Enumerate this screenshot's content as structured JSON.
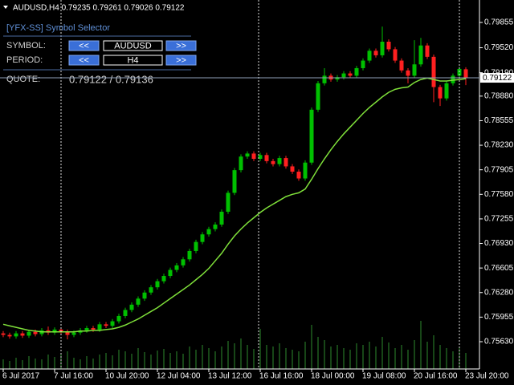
{
  "chart_data": {
    "type": "candlestick",
    "header": "AUDUSD,H4  0.79235 0.79261 0.79026 0.79122",
    "ylim": [
      0.75269,
      0.80152
    ],
    "yticks": [
      {
        "value": 0.79855,
        "label": "0.79855"
      },
      {
        "value": 0.7952,
        "label": "0.79520"
      },
      {
        "value": 0.7919,
        "label": "0.79190"
      },
      {
        "value": 0.7888,
        "label": "0.78880"
      },
      {
        "value": 0.78555,
        "label": "0.78555"
      },
      {
        "value": 0.7823,
        "label": "0.78230"
      },
      {
        "value": 0.77905,
        "label": "0.77905"
      },
      {
        "value": 0.7758,
        "label": "0.77580"
      },
      {
        "value": 0.77255,
        "label": "0.77255"
      },
      {
        "value": 0.7693,
        "label": "0.76930"
      },
      {
        "value": 0.76605,
        "label": "0.76605"
      },
      {
        "value": 0.7628,
        "label": "0.76280"
      },
      {
        "value": 0.75955,
        "label": "0.75955"
      },
      {
        "value": 0.7563,
        "label": "0.75630"
      }
    ],
    "categories": [
      "6 Jul 2017",
      null,
      null,
      null,
      null,
      null,
      null,
      null,
      "7 Jul 16:00",
      null,
      null,
      null,
      null,
      null,
      null,
      null,
      "10 Jul 20:00",
      null,
      null,
      null,
      null,
      null,
      null,
      null,
      "12 Jul 04:00",
      null,
      null,
      null,
      null,
      null,
      null,
      null,
      "13 Jul 12:00",
      null,
      null,
      null,
      null,
      null,
      null,
      null,
      "16 Jul 16:00",
      null,
      null,
      null,
      null,
      null,
      null,
      null,
      "18 Jul 00:00",
      null,
      null,
      null,
      null,
      null,
      null,
      null,
      "19 Jul 08:00",
      null,
      null,
      null,
      null,
      null,
      null,
      null,
      "20 Jul 16:00",
      null,
      null,
      null,
      null,
      null,
      null,
      null,
      "23 Jul 20:00"
    ],
    "ohlc": [
      [
        0.7574,
        0.7577,
        0.7569,
        0.7572
      ],
      [
        0.7572,
        0.7575,
        0.7567,
        0.757
      ],
      [
        0.757,
        0.7577,
        0.7567,
        0.7574
      ],
      [
        0.7574,
        0.7577,
        0.7568,
        0.7571
      ],
      [
        0.7571,
        0.7579,
        0.7568,
        0.7576
      ],
      [
        0.7576,
        0.7579,
        0.757,
        0.7573
      ],
      [
        0.7573,
        0.7581,
        0.757,
        0.7578
      ],
      [
        0.7578,
        0.7583,
        0.7572,
        0.7575
      ],
      [
        0.7575,
        0.7582,
        0.7572,
        0.7579
      ],
      [
        0.7579,
        0.7582,
        0.7573,
        0.7576
      ],
      [
        0.7576,
        0.7579,
        0.7566,
        0.7572
      ],
      [
        0.7572,
        0.7578,
        0.7569,
        0.7575
      ],
      [
        0.7575,
        0.7581,
        0.7572,
        0.7578
      ],
      [
        0.7578,
        0.7584,
        0.7575,
        0.7581
      ],
      [
        0.7581,
        0.7584,
        0.7576,
        0.7579
      ],
      [
        0.7579,
        0.7589,
        0.7576,
        0.7586
      ],
      [
        0.7586,
        0.7589,
        0.7581,
        0.7584
      ],
      [
        0.7584,
        0.7593,
        0.7581,
        0.759
      ],
      [
        0.759,
        0.76,
        0.7587,
        0.7597
      ],
      [
        0.7597,
        0.7608,
        0.7594,
        0.7605
      ],
      [
        0.7605,
        0.7615,
        0.7602,
        0.7612
      ],
      [
        0.7612,
        0.7623,
        0.7609,
        0.762
      ],
      [
        0.762,
        0.7631,
        0.7617,
        0.7628
      ],
      [
        0.7628,
        0.7638,
        0.7625,
        0.7635
      ],
      [
        0.7635,
        0.7646,
        0.7632,
        0.7643
      ],
      [
        0.7643,
        0.7653,
        0.764,
        0.765
      ],
      [
        0.765,
        0.7661,
        0.7647,
        0.7658
      ],
      [
        0.7658,
        0.7667,
        0.7655,
        0.7664
      ],
      [
        0.7664,
        0.7675,
        0.7661,
        0.7672
      ],
      [
        0.7672,
        0.7686,
        0.7669,
        0.7683
      ],
      [
        0.7683,
        0.7698,
        0.768,
        0.7695
      ],
      [
        0.7695,
        0.7708,
        0.7692,
        0.7705
      ],
      [
        0.7705,
        0.7715,
        0.7702,
        0.7712
      ],
      [
        0.7712,
        0.7721,
        0.7709,
        0.7718
      ],
      [
        0.7718,
        0.7738,
        0.7715,
        0.7735
      ],
      [
        0.7735,
        0.7763,
        0.7732,
        0.776
      ],
      [
        0.776,
        0.7793,
        0.7757,
        0.779
      ],
      [
        0.779,
        0.7811,
        0.7787,
        0.7808
      ],
      [
        0.7808,
        0.7815,
        0.7805,
        0.7812
      ],
      [
        0.7812,
        0.7815,
        0.7802,
        0.7805
      ],
      [
        0.7805,
        0.7813,
        0.7802,
        0.781
      ],
      [
        0.781,
        0.7813,
        0.7799,
        0.7802
      ],
      [
        0.7802,
        0.7805,
        0.7795,
        0.7798
      ],
      [
        0.7798,
        0.7809,
        0.7795,
        0.7806
      ],
      [
        0.7806,
        0.7809,
        0.7792,
        0.7795
      ],
      [
        0.7795,
        0.7798,
        0.7785,
        0.7788
      ],
      [
        0.7788,
        0.7791,
        0.7776,
        0.7779
      ],
      [
        0.7779,
        0.7803,
        0.7776,
        0.78
      ],
      [
        0.78,
        0.7873,
        0.7797,
        0.787
      ],
      [
        0.787,
        0.7908,
        0.7867,
        0.7905
      ],
      [
        0.7905,
        0.7925,
        0.7902,
        0.7915
      ],
      [
        0.7915,
        0.7918,
        0.7907,
        0.791
      ],
      [
        0.791,
        0.7916,
        0.7907,
        0.7913
      ],
      [
        0.7913,
        0.7921,
        0.791,
        0.7918
      ],
      [
        0.7918,
        0.7921,
        0.7912,
        0.7915
      ],
      [
        0.7915,
        0.7928,
        0.7912,
        0.7925
      ],
      [
        0.7925,
        0.7938,
        0.7922,
        0.7935
      ],
      [
        0.7935,
        0.7951,
        0.7932,
        0.7948
      ],
      [
        0.7948,
        0.7951,
        0.7939,
        0.7942
      ],
      [
        0.7942,
        0.798,
        0.7939,
        0.796
      ],
      [
        0.796,
        0.7963,
        0.7947,
        0.795
      ],
      [
        0.795,
        0.7953,
        0.7932,
        0.7935
      ],
      [
        0.7935,
        0.7938,
        0.7919,
        0.7922
      ],
      [
        0.7922,
        0.7925,
        0.7905,
        0.7915
      ],
      [
        0.7915,
        0.7962,
        0.7912,
        0.793
      ],
      [
        0.793,
        0.7965,
        0.7927,
        0.7955
      ],
      [
        0.7955,
        0.7958,
        0.7937,
        0.794
      ],
      [
        0.794,
        0.7943,
        0.788,
        0.79
      ],
      [
        0.79,
        0.7903,
        0.7875,
        0.7885
      ],
      [
        0.7885,
        0.7908,
        0.7882,
        0.7905
      ],
      [
        0.7905,
        0.7918,
        0.7902,
        0.7915
      ],
      [
        0.7915,
        0.7927,
        0.7912,
        0.7924
      ],
      [
        0.79235,
        0.79261,
        0.79026,
        0.79122
      ]
    ],
    "ma": [
      0.7586,
      0.7584,
      0.7582,
      0.758,
      0.7578,
      0.7577,
      0.7576,
      0.7576,
      0.7576,
      0.7576,
      0.7576,
      0.7576,
      0.7577,
      0.7577,
      0.7578,
      0.7578,
      0.7579,
      0.758,
      0.7582,
      0.7585,
      0.7589,
      0.7593,
      0.7598,
      0.7603,
      0.7608,
      0.7614,
      0.762,
      0.7626,
      0.7632,
      0.7638,
      0.7645,
      0.7652,
      0.766,
      0.767,
      0.768,
      0.7692,
      0.7703,
      0.7712,
      0.772,
      0.7727,
      0.7734,
      0.774,
      0.7745,
      0.775,
      0.7755,
      0.7758,
      0.776,
      0.7765,
      0.7778,
      0.7792,
      0.7805,
      0.7817,
      0.7828,
      0.7838,
      0.7847,
      0.7856,
      0.7865,
      0.7873,
      0.788,
      0.7887,
      0.7893,
      0.7897,
      0.7899,
      0.79,
      0.7906,
      0.791,
      0.7912,
      0.791,
      0.7908,
      0.7908,
      0.7909,
      0.791,
      0.7911
    ],
    "volume": [
      12,
      10,
      14,
      11,
      16,
      13,
      12,
      18,
      15,
      20,
      22,
      14,
      12,
      16,
      13,
      18,
      20,
      17,
      24,
      22,
      19,
      26,
      21,
      18,
      23,
      25,
      20,
      22,
      19,
      28,
      24,
      30,
      26,
      22,
      28,
      35,
      32,
      38,
      30,
      25,
      50,
      30,
      28,
      32,
      26,
      24,
      22,
      34,
      55,
      40,
      36,
      28,
      30,
      26,
      24,
      32,
      30,
      34,
      28,
      40,
      33,
      26,
      30,
      24,
      36,
      60,
      34,
      42,
      30,
      26,
      22,
      28,
      20
    ],
    "bull_color": "#00c000",
    "bear_color": "#ff2020",
    "ma_color": "#7fe03a",
    "volume_color": "#2e8b2e",
    "grid": false,
    "bid": 0.79122,
    "panel": {
      "title": "[YFX-SS] Symbol Selector",
      "symbol_label": "SYMBOL:",
      "prev": "<<",
      "symbol": "AUDUSD",
      "next": ">>",
      "period_label": "PERIOD:",
      "period": "H4",
      "quote_label": "QUOTE:",
      "quote": "0.79122 / 0.79136"
    }
  }
}
